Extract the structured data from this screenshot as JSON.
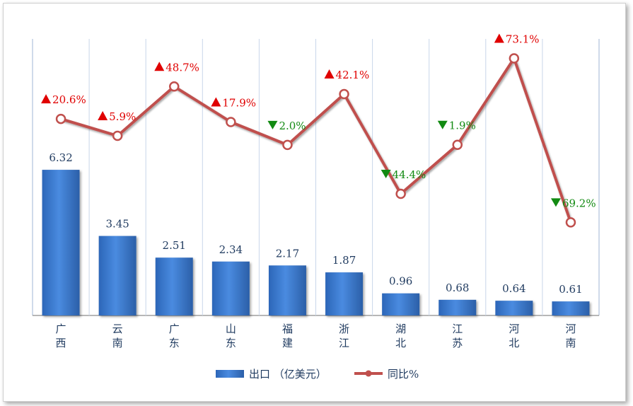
{
  "chart_data": {
    "type": "bar",
    "categories": [
      "广\n西",
      "云\n南",
      "广\n东",
      "山\n东",
      "福\n建",
      "浙\n江",
      "湖\n北",
      "江\n苏",
      "河\n北",
      "河\n南"
    ],
    "series": [
      {
        "name": "出口 （亿美元）",
        "type": "bar",
        "values": [
          6.32,
          3.45,
          2.51,
          2.34,
          2.17,
          1.87,
          0.96,
          0.68,
          0.64,
          0.61
        ],
        "labels": [
          "6.32",
          "3.45",
          "2.51",
          "2.34",
          "2.17",
          "1.87",
          "0.96",
          "0.68",
          "0.64",
          "0.61"
        ]
      },
      {
        "name": "同比%",
        "type": "line",
        "values": [
          20.6,
          5.9,
          48.7,
          17.9,
          -2.0,
          42.1,
          -44.4,
          -1.9,
          73.1,
          -69.2
        ],
        "labels": [
          "20.6%",
          "5.9%",
          "48.7%",
          "17.9%",
          "2.0%",
          "42.1%",
          "44.4%",
          "1.9%",
          "73.1%",
          "69.2%"
        ]
      }
    ],
    "colors": {
      "bar": "#3a7bd5",
      "line": "#c0504d",
      "up": "#e00000",
      "down": "#128a12"
    },
    "ylim_bar": [
      0,
      12
    ],
    "ylim_line": [
      -150,
      90
    ],
    "grid": "vertical",
    "legend_position": "bottom"
  }
}
